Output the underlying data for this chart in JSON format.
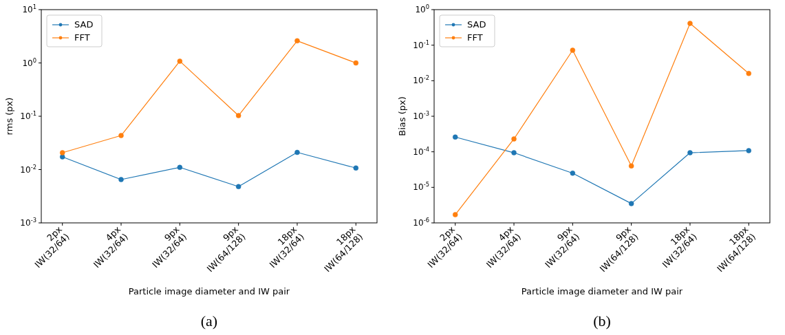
{
  "chart_data": [
    {
      "type": "line",
      "title": "(a)",
      "xlabel": "Particle image diameter and IW pair",
      "ylabel": "rms (px)",
      "log": "y",
      "grid": false,
      "legend": "top left",
      "marker": "circle",
      "line_style": "solid",
      "categories": [
        "2px\nIW(32/64)",
        "4px\nIW(32/64)",
        "9px\nIW(32/64)",
        "9px\nIW(64/128)",
        "18px\nIW(32/64)",
        "18px\nIW(64/128)"
      ],
      "ylim": [
        0.001,
        10
      ],
      "yticks": [
        {
          "value": 0.001,
          "label": "10$^{-3}$"
        },
        {
          "value": 0.01,
          "label": "10$^{-2}$"
        },
        {
          "value": 0.1,
          "label": "10$^{-1}$"
        },
        {
          "value": 1,
          "label": "10$^{0}$"
        },
        {
          "value": 10,
          "label": "10$^{1}$"
        }
      ],
      "series": [
        {
          "name": "SAD",
          "color": "#1f77b4",
          "values": [
            0.0173,
            0.0065,
            0.011,
            0.0048,
            0.021,
            0.0107
          ]
        },
        {
          "name": "FFT",
          "color": "#ff7f0e",
          "values": [
            0.0207,
            0.0435,
            1.08,
            0.103,
            2.6,
            1.0
          ]
        }
      ]
    },
    {
      "type": "line",
      "title": "(b)",
      "xlabel": "Particle image diameter and IW pair",
      "ylabel": "Bias (px)",
      "log": "y",
      "grid": false,
      "legend": "top left",
      "marker": "circle",
      "line_style": "solid",
      "categories": [
        "2px\nIW(32/64)",
        "4px\nIW(32/64)",
        "9px\nIW(32/64)",
        "9px\nIW(64/128)",
        "18px\nIW(32/64)",
        "18px\nIW(64/128)"
      ],
      "ylim": [
        1e-06,
        1
      ],
      "yticks": [
        {
          "value": 1e-06,
          "label": "10$^{-6}$"
        },
        {
          "value": 1e-05,
          "label": "10$^{-5}$"
        },
        {
          "value": 0.0001,
          "label": "10$^{-4}$"
        },
        {
          "value": 0.001,
          "label": "10$^{-3}$"
        },
        {
          "value": 0.01,
          "label": "10$^{-2}$"
        },
        {
          "value": 0.1,
          "label": "10$^{-1}$"
        },
        {
          "value": 1,
          "label": "10$^{0}$"
        }
      ],
      "series": [
        {
          "name": "SAD",
          "color": "#1f77b4",
          "values": [
            0.00026,
            9.4e-05,
            2.5e-05,
            3.5e-06,
            9.4e-05,
            0.000108
          ]
        },
        {
          "name": "FFT",
          "color": "#ff7f0e",
          "values": [
            1.7e-06,
            0.00023,
            0.072,
            4e-05,
            0.41,
            0.016
          ]
        }
      ]
    }
  ]
}
